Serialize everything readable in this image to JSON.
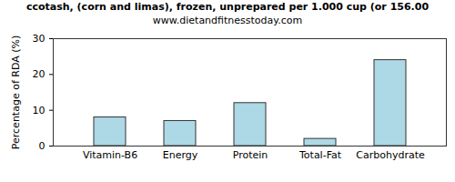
{
  "chart_data": {
    "type": "bar",
    "title": "ccotash, (corn and limas), frozen, unprepared per 1.000 cup (or 156.00",
    "subtitle": "www.dietandfitnesstoday.com",
    "y_label": "Percentage of RDA (%)",
    "categories": [
      "Vitamin-B6",
      "Energy",
      "Protein",
      "Total-Fat",
      "Carbohydrate"
    ],
    "values": [
      8,
      7,
      12,
      2,
      24
    ],
    "color": "#add8e6",
    "ylim": [
      0,
      30
    ],
    "yticks": [
      0,
      10,
      20,
      30
    ],
    "grid": false
  }
}
